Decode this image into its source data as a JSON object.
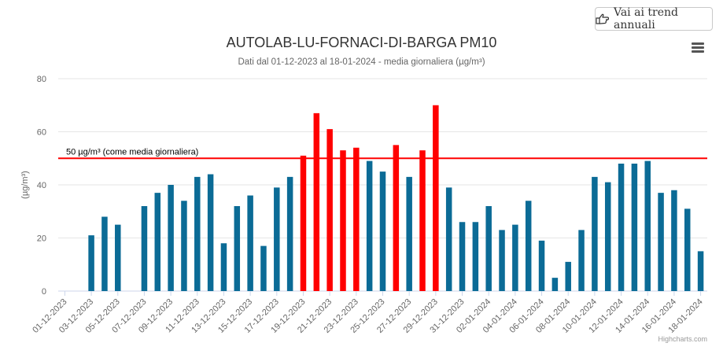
{
  "button": {
    "label": "Vai ai trend annuali",
    "icon": "hand-pointing-right-icon"
  },
  "chart_data": {
    "type": "bar",
    "title": "AUTOLAB-LU-FORNACI-DI-BARGA PM10",
    "subtitle": "Dati dal 01-12-2023 al 18-01-2024 - media giornaliera (µg/m³)",
    "ylabel": "(µg/m³)",
    "xlabel": "",
    "ylim": [
      0,
      80
    ],
    "yticks": [
      0,
      20,
      40,
      60,
      80
    ],
    "grid": true,
    "legend": "none",
    "categories": [
      "01-12-2023",
      "02-12-2023",
      "03-12-2023",
      "04-12-2023",
      "05-12-2023",
      "06-12-2023",
      "07-12-2023",
      "08-12-2023",
      "09-12-2023",
      "10-12-2023",
      "11-12-2023",
      "12-12-2023",
      "13-12-2023",
      "14-12-2023",
      "15-12-2023",
      "16-12-2023",
      "17-12-2023",
      "18-12-2023",
      "19-12-2023",
      "20-12-2023",
      "21-12-2023",
      "22-12-2023",
      "23-12-2023",
      "24-12-2023",
      "25-12-2023",
      "26-12-2023",
      "27-12-2023",
      "28-12-2023",
      "29-12-2023",
      "30-12-2023",
      "31-12-2023",
      "01-01-2024",
      "02-01-2024",
      "03-01-2024",
      "04-01-2024",
      "05-01-2024",
      "06-01-2024",
      "07-01-2024",
      "08-01-2024",
      "09-01-2024",
      "10-01-2024",
      "11-01-2024",
      "12-01-2024",
      "13-01-2024",
      "14-01-2024",
      "15-01-2024",
      "16-01-2024",
      "17-01-2024",
      "18-01-2024"
    ],
    "tick_labels": [
      "01-12-2023",
      "03-12-2023",
      "05-12-2023",
      "07-12-2023",
      "09-12-2023",
      "11-12-2023",
      "13-12-2023",
      "15-12-2023",
      "17-12-2023",
      "19-12-2023",
      "21-12-2023",
      "23-12-2023",
      "25-12-2023",
      "27-12-2023",
      "29-12-2023",
      "31-12-2023",
      "02-01-2024",
      "04-01-2024",
      "06-01-2024",
      "08-01-2024",
      "10-01-2024",
      "12-01-2024",
      "14-01-2024",
      "16-01-2024",
      "18-01-2024"
    ],
    "values": [
      null,
      null,
      21,
      28,
      25,
      null,
      32,
      37,
      40,
      34,
      43,
      44,
      18,
      32,
      36,
      17,
      39,
      43,
      51,
      67,
      61,
      53,
      54,
      49,
      45,
      55,
      43,
      53,
      70,
      39,
      26,
      26,
      32,
      23,
      25,
      34,
      19,
      5,
      11,
      23,
      43,
      41,
      48,
      48,
      49,
      37,
      38,
      31,
      15
    ],
    "threshold": {
      "value": 50,
      "label": "50 µg/m³ (come media giornaliera)",
      "color": "#ff0000"
    },
    "colors": {
      "normal": "#0b6b96",
      "exceed": "#ff0000",
      "grid": "#e6e6e6",
      "axis_text": "#666666"
    }
  },
  "menu": {
    "icon": "hamburger-menu-icon"
  },
  "credits": "Highcharts.com"
}
